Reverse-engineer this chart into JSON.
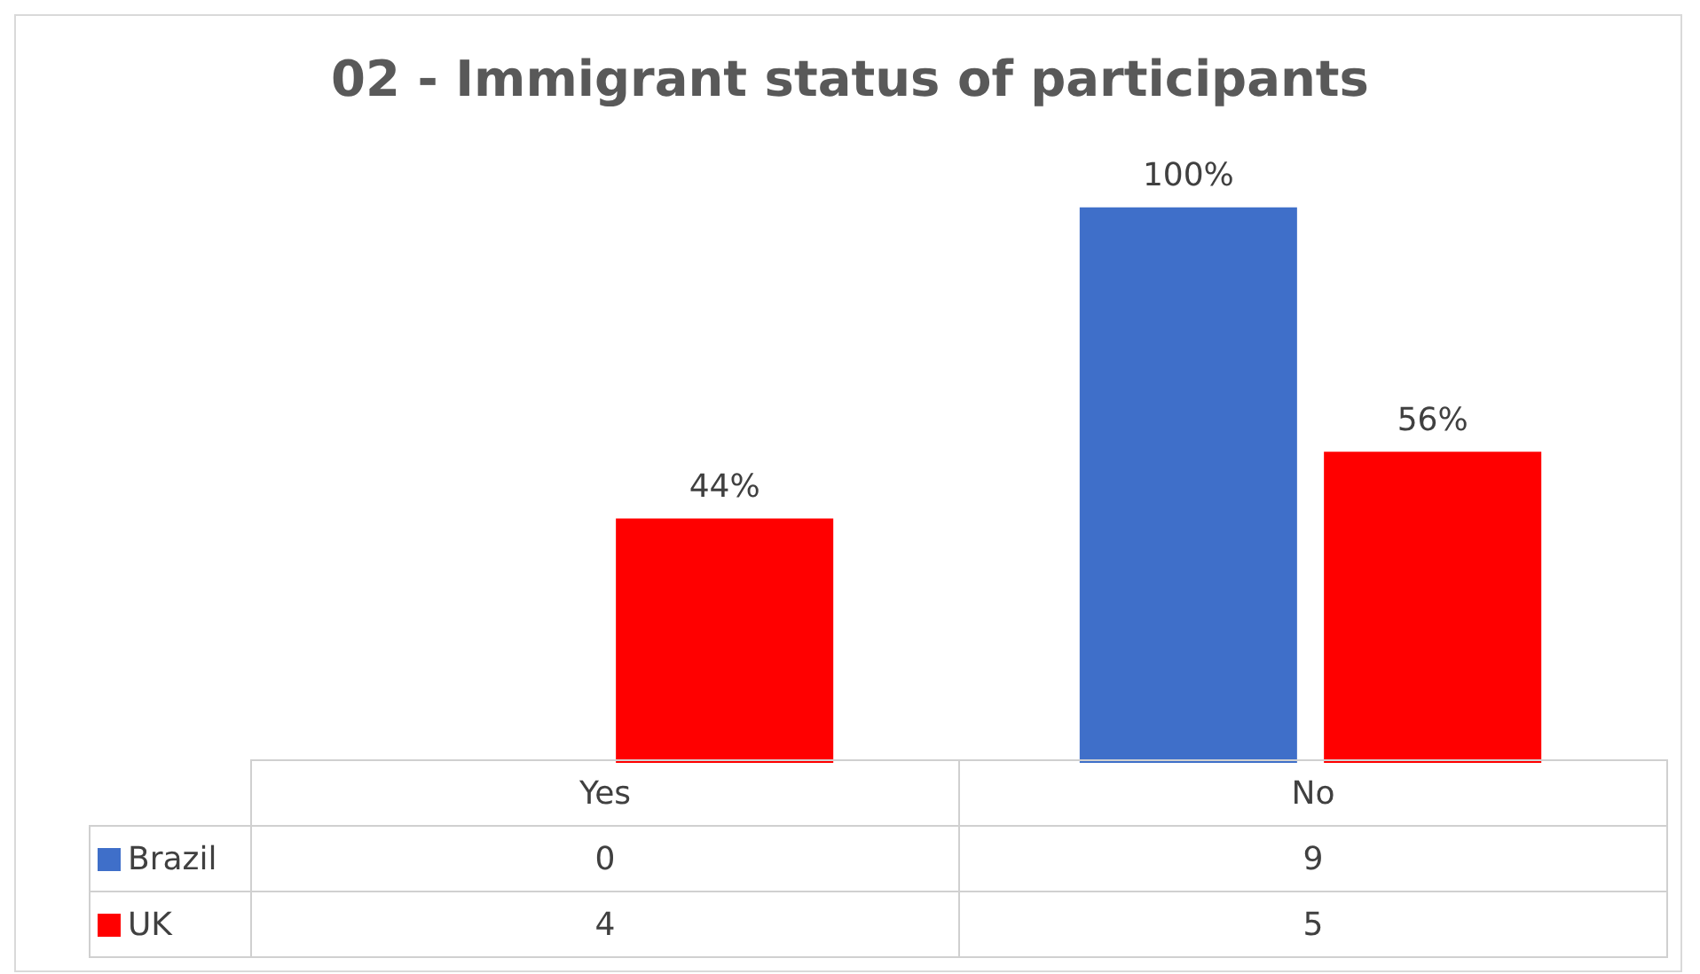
{
  "chart_data": {
    "type": "bar",
    "title": "02 - Immigrant status of participants",
    "categories": [
      "Yes",
      "No"
    ],
    "series": [
      {
        "name": "Brazil",
        "color": "#3f6fc9",
        "values": [
          0,
          100
        ],
        "value_labels": [
          null,
          "100%"
        ]
      },
      {
        "name": "UK",
        "color": "#ff0000",
        "values": [
          44,
          56
        ],
        "value_labels": [
          "44%",
          "56%"
        ]
      }
    ],
    "annotations": [
      "0",
      "9",
      "4",
      "5"
    ],
    "legend": "bottom left"
  }
}
